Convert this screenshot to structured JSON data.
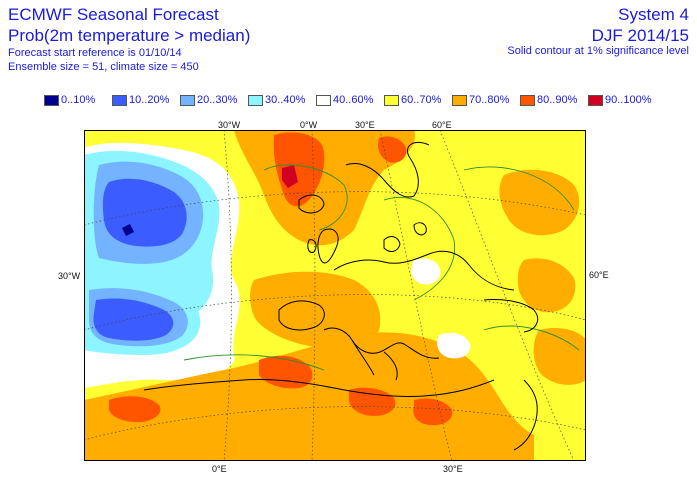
{
  "header": {
    "title": "ECMWF Seasonal Forecast",
    "subtitle": "Prob(2m temperature > median)",
    "start_ref": "Forecast start reference is 01/10/14",
    "ensemble": "Ensemble size = 51, climate size = 450",
    "system": "System 4",
    "season": "DJF 2014/15",
    "contour_note": "Solid contour at 1% significance level"
  },
  "legend": [
    {
      "label": "0..10%",
      "color": "#00008f"
    },
    {
      "label": "10..20%",
      "color": "#3b5cff"
    },
    {
      "label": "20..30%",
      "color": "#73b3ff"
    },
    {
      "label": "30..40%",
      "color": "#8cf5ff"
    },
    {
      "label": "40..60%",
      "color": "#ffffff"
    },
    {
      "label": "60..70%",
      "color": "#ffff33"
    },
    {
      "label": "70..80%",
      "color": "#ffad00"
    },
    {
      "label": "80..90%",
      "color": "#ff5500"
    },
    {
      "label": "90..100%",
      "color": "#d10022"
    }
  ],
  "axes": {
    "top": [
      "30°W",
      "0°W",
      "30°E",
      "60°E"
    ],
    "left": [
      "30°W"
    ],
    "right": [
      "60°E"
    ],
    "bottom": [
      "0°E",
      "30°E"
    ]
  },
  "colors": {
    "text": "#1a1adb",
    "coast": "#000000",
    "graticule": "#444444",
    "contour": "#2f8f2f"
  }
}
